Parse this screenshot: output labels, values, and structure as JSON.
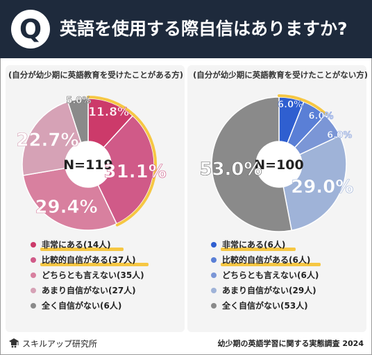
{
  "header": {
    "q_mark": "Q",
    "title": "英語を使用する際自信はありますか?"
  },
  "chart_data": [
    {
      "type": "pie",
      "label": "(自分が幼少期に英語教育を受けたことがある方)",
      "center_label": "N=119",
      "categories": [
        "非常にある(14人)",
        "比較的自信がある(37人)",
        "どちらとも言えない(35人)",
        "あまり自信がない(27人)",
        "全く自信がない(6人)"
      ],
      "values": [
        11.8,
        31.1,
        29.4,
        22.7,
        5.0
      ],
      "value_labels": [
        "11.8%",
        "31.1%",
        "29.4%",
        "22.7%",
        "5.0%"
      ],
      "colors": [
        "#cc3a6a",
        "#d05a88",
        "#d8809f",
        "#d6a2b6",
        "#8a8a8a"
      ],
      "highlighted": [
        0,
        1
      ]
    },
    {
      "type": "pie",
      "label": "(自分が幼少期に英語教育を受けたことがない方)",
      "center_label": "N=100",
      "categories": [
        "非常にある(6人)",
        "比較的自信がある(6人)",
        "どちらとも言えない(6人)",
        "あまり自信がない(29人)",
        "全く自信がない(53人)"
      ],
      "values": [
        6.0,
        6.0,
        6.0,
        29.0,
        53.0
      ],
      "value_labels": [
        "6.0%",
        "6.0%",
        "6.0%",
        "29.0%",
        "53.0%"
      ],
      "colors": [
        "#2f5fd0",
        "#5a7fd6",
        "#7b96d6",
        "#9fb3d8",
        "#8a8a8a"
      ],
      "highlighted": [
        0,
        1
      ]
    }
  ],
  "footer": {
    "brand": "スキルアップ研究所",
    "survey": "幼少期の英語学習に関する実態調査 2024"
  }
}
